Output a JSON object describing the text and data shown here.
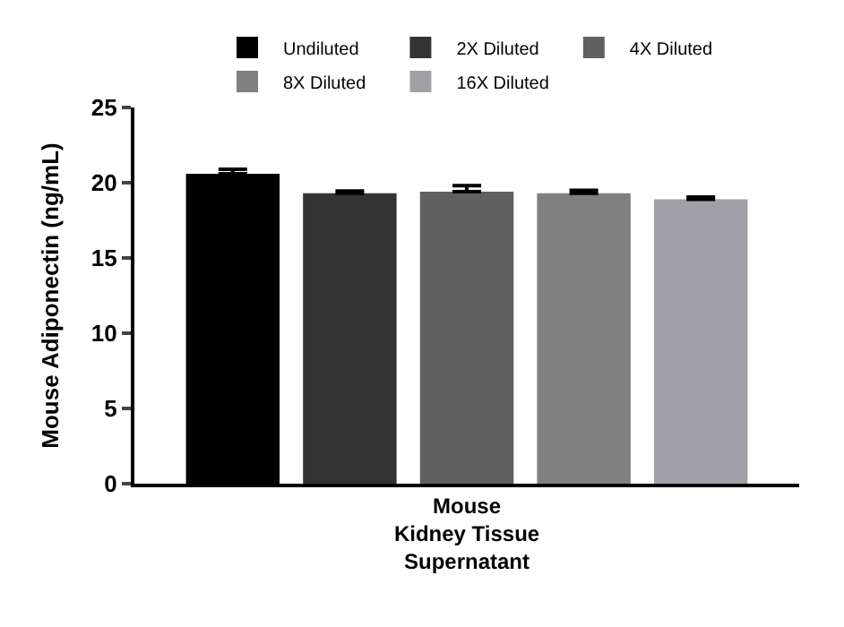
{
  "chart_data": {
    "type": "bar",
    "ylabel": "Mouse Adiponectin (ng/mL)",
    "categories": [
      "Mouse\nKidney Tissue\nSupernatant"
    ],
    "series": [
      {
        "name": "Undiluted",
        "color": "#000000",
        "values": [
          20.6
        ],
        "errors": [
          [
            20.6,
            20.9
          ]
        ]
      },
      {
        "name": "2X Diluted",
        "color": "#333333",
        "values": [
          19.3
        ],
        "errors": [
          [
            19.3,
            19.45
          ]
        ]
      },
      {
        "name": "4X Diluted",
        "color": "#606060",
        "values": [
          19.4
        ],
        "errors": [
          [
            19.4,
            19.8
          ]
        ]
      },
      {
        "name": "8X Diluted",
        "color": "#808080",
        "values": [
          19.3
        ],
        "errors": [
          [
            19.3,
            19.5
          ]
        ]
      },
      {
        "name": "16X Diluted",
        "color": "#a0a0a6",
        "values": [
          18.9
        ],
        "errors": [
          [
            18.9,
            19.05
          ]
        ]
      }
    ],
    "ylim": [
      0,
      25
    ],
    "yticks": [
      0,
      5,
      10,
      15,
      20,
      25
    ],
    "legend": "top"
  }
}
